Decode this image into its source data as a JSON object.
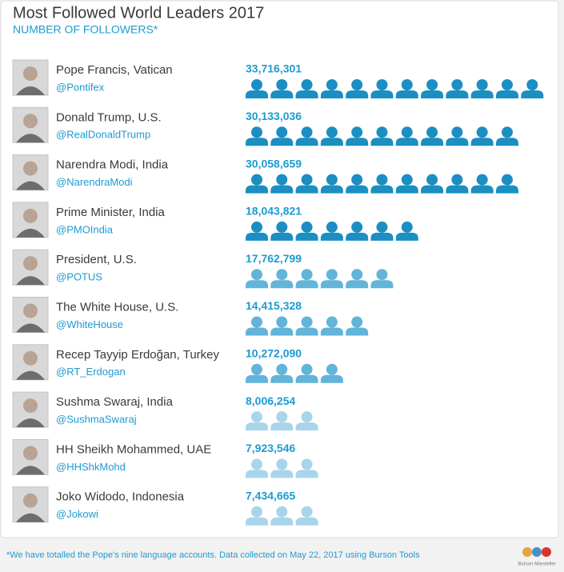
{
  "chart_data": {
    "type": "pictograph",
    "title": "Most Followed World Leaders 2017",
    "subtitle": "NUMBER OF FOLLOWERS*",
    "categories": [
      "Pope Francis, Vatican",
      "Donald Trump, U.S.",
      "Narendra Modi, India",
      "Prime Minister, India",
      "President, U.S.",
      "The White House, U.S.",
      "Recep Tayyip Erdoğan, Turkey",
      "Sushma Swaraj, India",
      "HH Sheikh Mohammed, UAE",
      "Joko Widodo, Indonesia"
    ],
    "handles": [
      "@Pontifex",
      "@RealDonaldTrump",
      "@NarendraModi",
      "@PMOIndia",
      "@POTUS",
      "@WhiteHouse",
      "@RT_Erdogan",
      "@SushmaSwaraj",
      "@HHShkMohd",
      "@Jokowi"
    ],
    "values": [
      33716301,
      30133036,
      30058659,
      18043821,
      17762799,
      14415328,
      10272090,
      8006254,
      7923546,
      7434665
    ],
    "value_labels": [
      "33,716,301",
      "30,133,036",
      "30,058,659",
      "18,043,821",
      "17,762,799",
      "14,415,328",
      "10,272,090",
      "8,006,254",
      "7,923,546",
      "7,434,665"
    ],
    "colors": [
      "#1b8ec2",
      "#1b8ec2",
      "#1b8ec2",
      "#1b8ec2",
      "#62b4d9",
      "#62b4d9",
      "#62b4d9",
      "#a9d5ea",
      "#a9d5ea",
      "#a9d5ea"
    ],
    "note": "*We have totalled the Pope's nine language accounts. Data collected on May 22, 2017 using Burson Tools",
    "source": "Burson-Marsteller"
  }
}
